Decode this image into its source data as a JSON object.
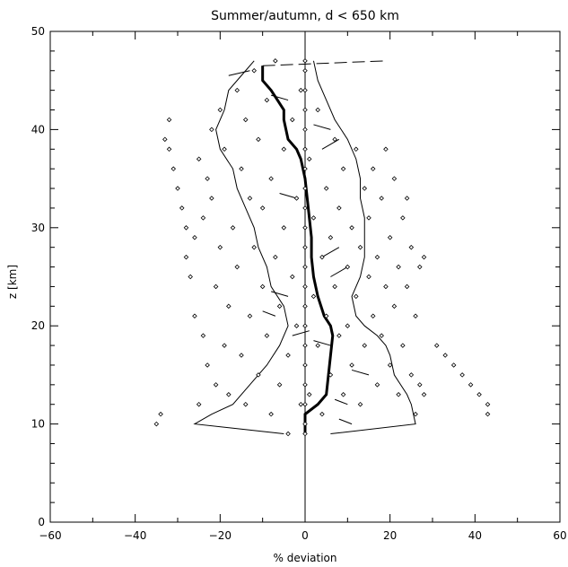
{
  "chart_data": {
    "type": "scatter",
    "title": "Summer/autumn, d < 650 km",
    "xlabel": "% deviation",
    "ylabel": "z [km]",
    "xlim": [
      -60,
      60
    ],
    "ylim": [
      0,
      50
    ],
    "xticks": [
      -60,
      -40,
      -20,
      0,
      20,
      40,
      60
    ],
    "yticks": [
      0,
      10,
      20,
      30,
      40,
      50
    ],
    "xtick_labels": [
      "−60",
      "−40",
      "−20",
      "0",
      "20",
      "40",
      "60"
    ],
    "ytick_labels": [
      "0",
      "10",
      "20",
      "30",
      "40",
      "50"
    ],
    "grid": false,
    "series": [
      {
        "style": "mean-thick",
        "x": [
          0,
          0,
          3,
          5,
          5.5,
          6,
          6.5,
          6,
          4.5,
          3,
          2,
          1.5,
          1.5,
          1,
          0.5,
          0,
          -1,
          -2,
          -4,
          -5,
          -5,
          -6.5,
          -8,
          -10,
          -10
        ],
        "y": [
          9,
          11,
          12,
          13,
          15,
          17,
          19,
          20,
          21,
          23,
          25,
          27,
          29,
          31,
          33,
          35,
          37,
          38,
          39,
          41,
          42,
          43,
          44,
          45,
          46.5
        ]
      },
      {
        "style": "envelope-left",
        "x": [
          -5,
          -26,
          -22,
          -17,
          -13,
          -9,
          -6,
          -4,
          -5,
          -8,
          -9,
          -11,
          -12,
          -14,
          -16,
          -17,
          -20,
          -21,
          -19,
          -18,
          -14,
          -12
        ],
        "y": [
          9,
          10,
          11,
          12,
          14,
          16,
          18,
          20,
          22,
          24,
          26,
          28,
          30,
          32,
          34,
          36,
          38,
          40,
          42,
          44,
          46,
          47
        ]
      },
      {
        "style": "envelope-right",
        "x": [
          6,
          26,
          25,
          24,
          21,
          20,
          19,
          17,
          14,
          12,
          11,
          13,
          14,
          14,
          14,
          13,
          13,
          12,
          10,
          7,
          5,
          3,
          2
        ],
        "y": [
          9,
          10,
          12,
          13,
          15,
          17,
          18,
          19,
          20,
          21,
          23,
          25,
          27,
          29,
          31,
          33,
          35,
          37,
          39,
          41,
          43,
          45,
          47
        ]
      },
      {
        "style": "dashed-individual",
        "x": [
          -10,
          19
        ],
        "y": [
          46.5,
          47
        ]
      }
    ],
    "points": [
      {
        "x": -35,
        "y": 10
      },
      {
        "x": -34,
        "y": 11
      },
      {
        "x": -33,
        "y": 39
      },
      {
        "x": -32,
        "y": 41
      },
      {
        "x": -32,
        "y": 38
      },
      {
        "x": -31,
        "y": 36
      },
      {
        "x": -30,
        "y": 34
      },
      {
        "x": -29,
        "y": 32
      },
      {
        "x": -28,
        "y": 30
      },
      {
        "x": -28,
        "y": 27
      },
      {
        "x": -27,
        "y": 25
      },
      {
        "x": -26,
        "y": 29
      },
      {
        "x": -26,
        "y": 21
      },
      {
        "x": -25,
        "y": 12
      },
      {
        "x": -25,
        "y": 37
      },
      {
        "x": -24,
        "y": 19
      },
      {
        "x": -24,
        "y": 31
      },
      {
        "x": -23,
        "y": 16
      },
      {
        "x": -23,
        "y": 35
      },
      {
        "x": -22,
        "y": 40
      },
      {
        "x": -22,
        "y": 33
      },
      {
        "x": -21,
        "y": 24
      },
      {
        "x": -21,
        "y": 14
      },
      {
        "x": -20,
        "y": 42
      },
      {
        "x": -20,
        "y": 28
      },
      {
        "x": -19,
        "y": 18
      },
      {
        "x": -19,
        "y": 38
      },
      {
        "x": -18,
        "y": 22
      },
      {
        "x": -18,
        "y": 13
      },
      {
        "x": -17,
        "y": 30
      },
      {
        "x": -16,
        "y": 44
      },
      {
        "x": -16,
        "y": 26
      },
      {
        "x": -15,
        "y": 17
      },
      {
        "x": -15,
        "y": 36
      },
      {
        "x": -14,
        "y": 41
      },
      {
        "x": -14,
        "y": 12
      },
      {
        "x": -13,
        "y": 33
      },
      {
        "x": -13,
        "y": 21
      },
      {
        "x": -12,
        "y": 46
      },
      {
        "x": -12,
        "y": 28
      },
      {
        "x": -11,
        "y": 15
      },
      {
        "x": -11,
        "y": 39
      },
      {
        "x": -10,
        "y": 24
      },
      {
        "x": -10,
        "y": 32
      },
      {
        "x": -9,
        "y": 19
      },
      {
        "x": -9,
        "y": 43
      },
      {
        "x": -8,
        "y": 11
      },
      {
        "x": -8,
        "y": 35
      },
      {
        "x": -7,
        "y": 27
      },
      {
        "x": -7,
        "y": 47
      },
      {
        "x": -6,
        "y": 22
      },
      {
        "x": -6,
        "y": 14
      },
      {
        "x": -5,
        "y": 38
      },
      {
        "x": -5,
        "y": 30
      },
      {
        "x": -4,
        "y": 17
      },
      {
        "x": -4,
        "y": 9
      },
      {
        "x": -3,
        "y": 25
      },
      {
        "x": -3,
        "y": 41
      },
      {
        "x": -2,
        "y": 20
      },
      {
        "x": -2,
        "y": 33
      },
      {
        "x": -1,
        "y": 12
      },
      {
        "x": -1,
        "y": 44
      },
      {
        "x": 0,
        "y": 9
      },
      {
        "x": 0,
        "y": 10
      },
      {
        "x": 0,
        "y": 12
      },
      {
        "x": 0,
        "y": 14
      },
      {
        "x": 0,
        "y": 16
      },
      {
        "x": 0,
        "y": 18
      },
      {
        "x": 0,
        "y": 20
      },
      {
        "x": 0,
        "y": 22
      },
      {
        "x": 0,
        "y": 24
      },
      {
        "x": 0,
        "y": 26
      },
      {
        "x": 0,
        "y": 28
      },
      {
        "x": 0,
        "y": 30
      },
      {
        "x": 0,
        "y": 32
      },
      {
        "x": 0,
        "y": 34
      },
      {
        "x": 0,
        "y": 36
      },
      {
        "x": 0,
        "y": 38
      },
      {
        "x": 0,
        "y": 40
      },
      {
        "x": 0,
        "y": 42
      },
      {
        "x": 0,
        "y": 44
      },
      {
        "x": 0,
        "y": 46
      },
      {
        "x": 0,
        "y": 47
      },
      {
        "x": 1,
        "y": 13
      },
      {
        "x": 1,
        "y": 37
      },
      {
        "x": 2,
        "y": 23
      },
      {
        "x": 2,
        "y": 31
      },
      {
        "x": 3,
        "y": 18
      },
      {
        "x": 3,
        "y": 42
      },
      {
        "x": 4,
        "y": 27
      },
      {
        "x": 4,
        "y": 11
      },
      {
        "x": 5,
        "y": 34
      },
      {
        "x": 5,
        "y": 21
      },
      {
        "x": 6,
        "y": 15
      },
      {
        "x": 6,
        "y": 29
      },
      {
        "x": 7,
        "y": 39
      },
      {
        "x": 7,
        "y": 24
      },
      {
        "x": 8,
        "y": 19
      },
      {
        "x": 8,
        "y": 32
      },
      {
        "x": 9,
        "y": 13
      },
      {
        "x": 9,
        "y": 36
      },
      {
        "x": 10,
        "y": 26
      },
      {
        "x": 10,
        "y": 20
      },
      {
        "x": 11,
        "y": 30
      },
      {
        "x": 11,
        "y": 16
      },
      {
        "x": 12,
        "y": 23
      },
      {
        "x": 12,
        "y": 38
      },
      {
        "x": 13,
        "y": 28
      },
      {
        "x": 13,
        "y": 12
      },
      {
        "x": 14,
        "y": 34
      },
      {
        "x": 14,
        "y": 18
      },
      {
        "x": 15,
        "y": 25
      },
      {
        "x": 15,
        "y": 31
      },
      {
        "x": 16,
        "y": 21
      },
      {
        "x": 16,
        "y": 36
      },
      {
        "x": 17,
        "y": 14
      },
      {
        "x": 17,
        "y": 27
      },
      {
        "x": 18,
        "y": 33
      },
      {
        "x": 18,
        "y": 19
      },
      {
        "x": 19,
        "y": 24
      },
      {
        "x": 19,
        "y": 38
      },
      {
        "x": 20,
        "y": 16
      },
      {
        "x": 20,
        "y": 29
      },
      {
        "x": 21,
        "y": 22
      },
      {
        "x": 21,
        "y": 35
      },
      {
        "x": 22,
        "y": 13
      },
      {
        "x": 22,
        "y": 26
      },
      {
        "x": 23,
        "y": 31
      },
      {
        "x": 23,
        "y": 18
      },
      {
        "x": 24,
        "y": 24
      },
      {
        "x": 24,
        "y": 33
      },
      {
        "x": 25,
        "y": 15
      },
      {
        "x": 25,
        "y": 28
      },
      {
        "x": 26,
        "y": 21
      },
      {
        "x": 26,
        "y": 11
      },
      {
        "x": 27,
        "y": 26
      },
      {
        "x": 27,
        "y": 14
      },
      {
        "x": 28,
        "y": 27
      },
      {
        "x": 28,
        "y": 13
      },
      {
        "x": 31,
        "y": 18
      },
      {
        "x": 33,
        "y": 17
      },
      {
        "x": 35,
        "y": 16
      },
      {
        "x": 37,
        "y": 15
      },
      {
        "x": 39,
        "y": 14
      },
      {
        "x": 41,
        "y": 13
      },
      {
        "x": 43,
        "y": 12
      },
      {
        "x": 43,
        "y": 11
      }
    ],
    "dashes": [
      {
        "x1": -18,
        "y1": 45.5,
        "x2": -13,
        "y2": 46
      },
      {
        "x1": -8,
        "y1": 43.5,
        "x2": -4,
        "y2": 43
      },
      {
        "x1": 2,
        "y1": 40.5,
        "x2": 6,
        "y2": 40
      },
      {
        "x1": 4,
        "y1": 38,
        "x2": 8,
        "y2": 39
      },
      {
        "x1": -6,
        "y1": 33.5,
        "x2": -2,
        "y2": 33
      },
      {
        "x1": 4,
        "y1": 27,
        "x2": 8,
        "y2": 28
      },
      {
        "x1": 6,
        "y1": 25,
        "x2": 10,
        "y2": 26
      },
      {
        "x1": -8,
        "y1": 23.5,
        "x2": -4,
        "y2": 23
      },
      {
        "x1": -10,
        "y1": 21.5,
        "x2": -7,
        "y2": 21
      },
      {
        "x1": -3,
        "y1": 19,
        "x2": 1,
        "y2": 19.5
      },
      {
        "x1": 2,
        "y1": 18.5,
        "x2": 6,
        "y2": 18
      },
      {
        "x1": 11,
        "y1": 15.5,
        "x2": 15,
        "y2": 15
      },
      {
        "x1": 7,
        "y1": 12.5,
        "x2": 10,
        "y2": 12
      },
      {
        "x1": 8,
        "y1": 10.5,
        "x2": 11,
        "y2": 10
      }
    ]
  }
}
